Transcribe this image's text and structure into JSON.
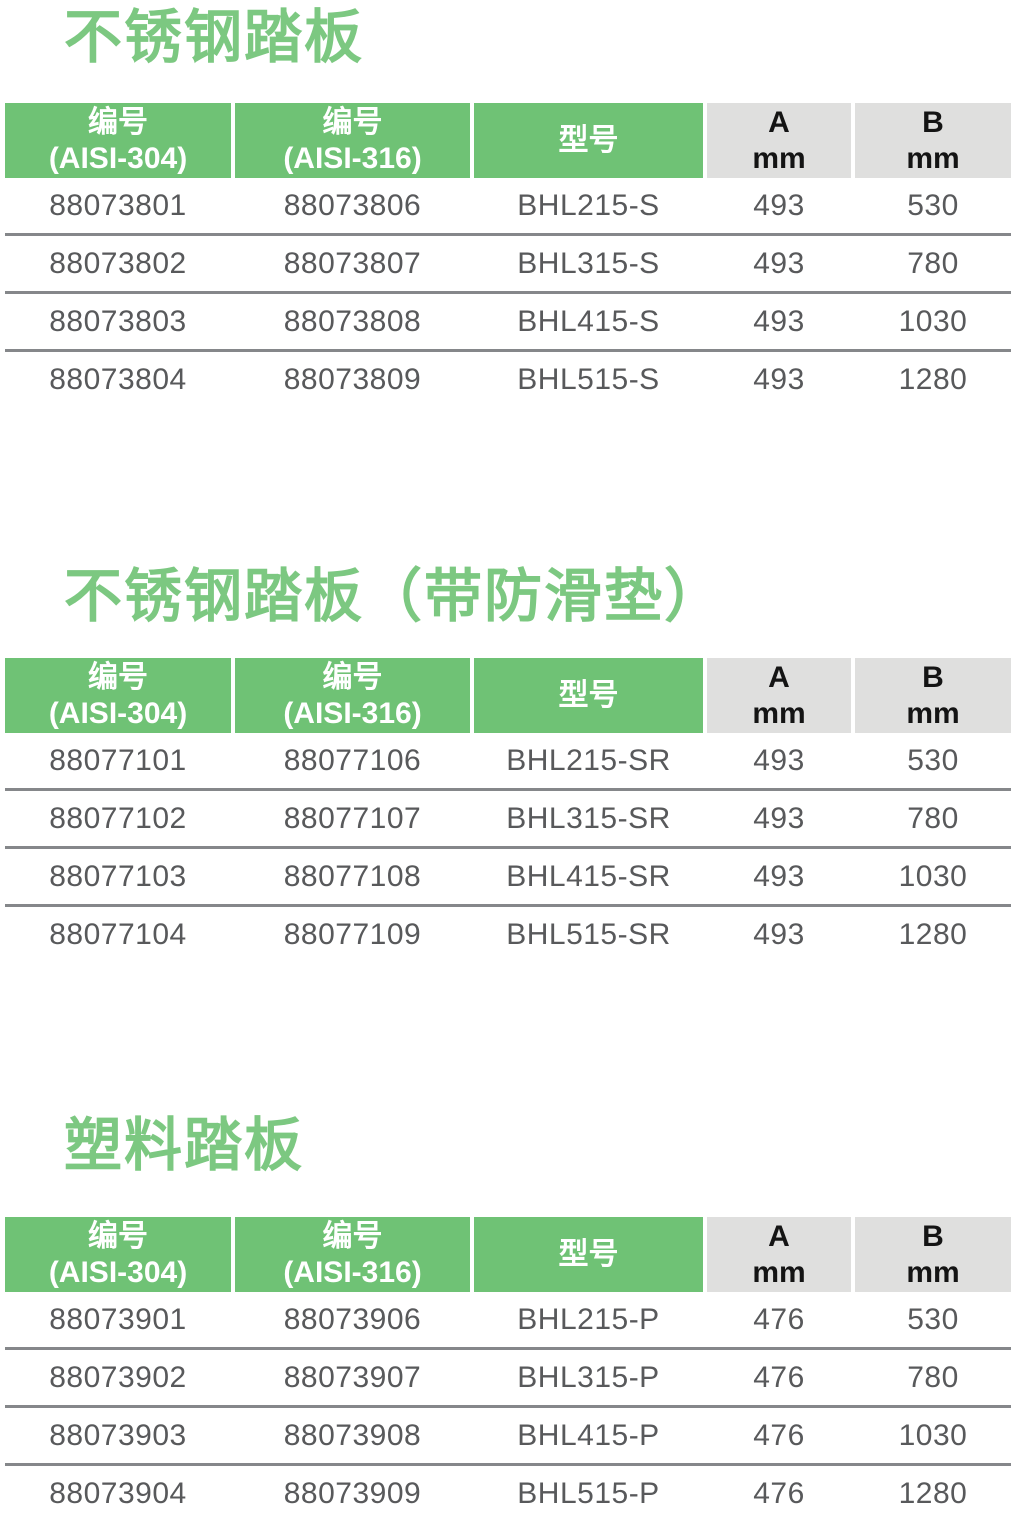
{
  "colors": {
    "title_green": "#7cc881",
    "header_green": "#6fc275",
    "header_gray_bg": "#dfdfde",
    "header_text_on_green": "#ffffff",
    "header_text_on_gray": "#141414",
    "row_text": "#58595b",
    "row_divider": "#85878a",
    "page_bg": "#ffffff"
  },
  "sections": [
    {
      "title": "不锈钢踏板",
      "columns": [
        {
          "line1": "编号",
          "line2": "(AISI-304)"
        },
        {
          "line1": "编号",
          "line2": "(AISI-316)"
        },
        {
          "line1": "型号",
          "line2": ""
        },
        {
          "line1": "A",
          "line2": "mm"
        },
        {
          "line1": "B",
          "line2": "mm"
        }
      ],
      "rows": [
        [
          "88073801",
          "88073806",
          "BHL215-S",
          "493",
          "530"
        ],
        [
          "88073802",
          "88073807",
          "BHL315-S",
          "493",
          "780"
        ],
        [
          "88073803",
          "88073808",
          "BHL415-S",
          "493",
          "1030"
        ],
        [
          "88073804",
          "88073809",
          "BHL515-S",
          "493",
          "1280"
        ]
      ]
    },
    {
      "title": "不锈钢踏板（带防滑垫）",
      "columns": [
        {
          "line1": "编号",
          "line2": "(AISI-304)"
        },
        {
          "line1": "编号",
          "line2": "(AISI-316)"
        },
        {
          "line1": "型号",
          "line2": ""
        },
        {
          "line1": "A",
          "line2": "mm"
        },
        {
          "line1": "B",
          "line2": "mm"
        }
      ],
      "rows": [
        [
          "88077101",
          "88077106",
          "BHL215-SR",
          "493",
          "530"
        ],
        [
          "88077102",
          "88077107",
          "BHL315-SR",
          "493",
          "780"
        ],
        [
          "88077103",
          "88077108",
          "BHL415-SR",
          "493",
          "1030"
        ],
        [
          "88077104",
          "88077109",
          "BHL515-SR",
          "493",
          "1280"
        ]
      ]
    },
    {
      "title": "塑料踏板",
      "columns": [
        {
          "line1": "编号",
          "line2": "(AISI-304)"
        },
        {
          "line1": "编号",
          "line2": "(AISI-316)"
        },
        {
          "line1": "型号",
          "line2": ""
        },
        {
          "line1": "A",
          "line2": "mm"
        },
        {
          "line1": "B",
          "line2": "mm"
        }
      ],
      "rows": [
        [
          "88073901",
          "88073906",
          "BHL215-P",
          "476",
          "530"
        ],
        [
          "88073902",
          "88073907",
          "BHL315-P",
          "476",
          "780"
        ],
        [
          "88073903",
          "88073908",
          "BHL415-P",
          "476",
          "1030"
        ],
        [
          "88073904",
          "88073909",
          "BHL515-P",
          "476",
          "1280"
        ]
      ]
    }
  ]
}
